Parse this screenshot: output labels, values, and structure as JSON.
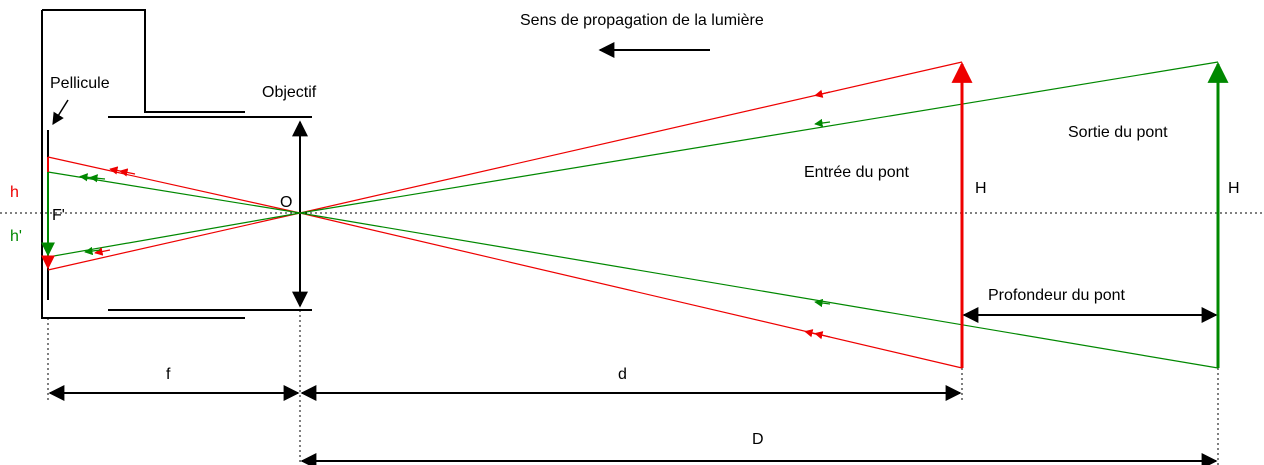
{
  "title": "Sens de propagation de la lumière",
  "labels": {
    "film": "Pellicule",
    "lens": "Objectif",
    "center": "O",
    "focus": "F'",
    "image_near": "h",
    "image_far": "h'",
    "entry": "Entrée du pont",
    "exit": "Sortie du pont",
    "height_entry": "H",
    "height_exit": "H",
    "depth": "Profondeur du pont",
    "focal": "f",
    "distance_near": "d",
    "distance_far": "D"
  }
}
